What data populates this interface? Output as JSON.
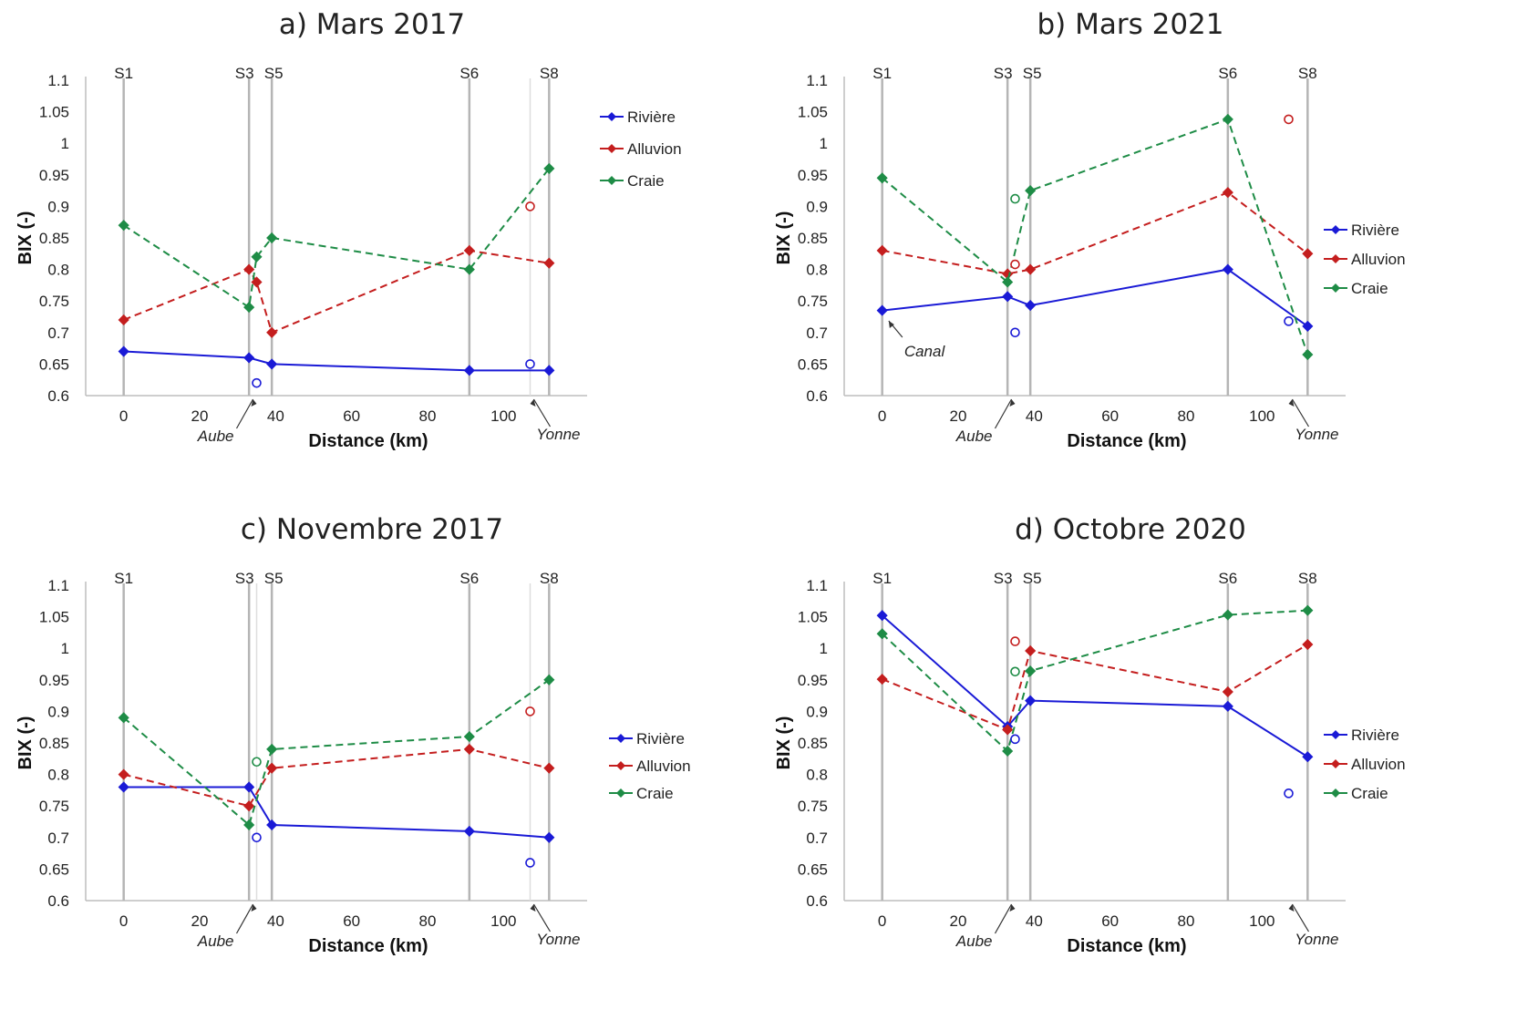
{
  "colors": {
    "riviere": "#1a1ad6",
    "alluvion": "#c41e1e",
    "craie": "#1e8c46",
    "station_line": "#b5b5b5",
    "axis": "#bdbdbd"
  },
  "chart_data": [
    {
      "type": "line",
      "title": "a) Mars 2017",
      "xlabel": "Distance (km)",
      "ylabel": "BIX (-)",
      "xlim": [
        -10,
        122
      ],
      "ylim": [
        0.6,
        1.1
      ],
      "xticks": [
        "0",
        "20",
        "40",
        "60",
        "80",
        "100"
      ],
      "yticks": [
        "0.6",
        "0.65",
        "0.7",
        "0.75",
        "0.8",
        "0.85",
        "0.9",
        "0.95",
        "1",
        "1.05",
        "1.1"
      ],
      "stations": [
        {
          "label": "S1",
          "x": 0
        },
        {
          "label": "S3",
          "x": 33
        },
        {
          "label": "S5",
          "x": 39
        },
        {
          "label": "S6",
          "x": 91
        },
        {
          "label": "S8",
          "x": 112
        }
      ],
      "tributaries": [
        {
          "x": 107
        }
      ],
      "annotations": [
        {
          "text": "Aube",
          "x": 35,
          "y": 0.6,
          "dir": "left"
        },
        {
          "text": "Yonne",
          "x": 107,
          "y": 0.6,
          "dir": "right"
        }
      ],
      "legend": "right-upper",
      "series": [
        {
          "name": "Rivière",
          "style": "solid",
          "x": [
            0,
            33,
            39,
            91,
            112
          ],
          "y": [
            0.67,
            0.66,
            0.65,
            0.64,
            0.64
          ]
        },
        {
          "name": "Alluvion",
          "style": "dashed",
          "x": [
            0,
            33,
            35,
            39,
            91,
            112
          ],
          "y": [
            0.72,
            0.8,
            0.78,
            0.7,
            0.83,
            0.81
          ]
        },
        {
          "name": "Craie",
          "style": "dashed",
          "x": [
            0,
            33,
            35,
            39,
            91,
            112
          ],
          "y": [
            0.87,
            0.74,
            0.82,
            0.85,
            0.8,
            0.96
          ]
        }
      ],
      "tributary_points": [
        {
          "series": "riviere",
          "x": 35,
          "y": 0.62
        },
        {
          "series": "riviere",
          "x": 107,
          "y": 0.65
        },
        {
          "series": "alluvion",
          "x": 107,
          "y": 0.9
        }
      ]
    },
    {
      "type": "line",
      "title": "b) Mars 2021",
      "xlabel": "Distance (km)",
      "ylabel": "BIX (-)",
      "xlim": [
        -10,
        122
      ],
      "ylim": [
        0.6,
        1.1
      ],
      "xticks": [
        "0",
        "20",
        "40",
        "60",
        "80",
        "100"
      ],
      "yticks": [
        "0.6",
        "0.65",
        "0.7",
        "0.75",
        "0.8",
        "0.85",
        "0.9",
        "0.95",
        "1",
        "1.05",
        "1.1"
      ],
      "stations": [
        {
          "label": "S1",
          "x": 0
        },
        {
          "label": "S3",
          "x": 33
        },
        {
          "label": "S5",
          "x": 39
        },
        {
          "label": "S6",
          "x": 91
        },
        {
          "label": "S8",
          "x": 112
        }
      ],
      "tributaries": [],
      "annotations": [
        {
          "text": "Canal",
          "x": 1,
          "y": 0.73,
          "dir": "canal"
        },
        {
          "text": "Aube",
          "x": 35,
          "y": 0.6,
          "dir": "left"
        },
        {
          "text": "Yonne",
          "x": 107,
          "y": 0.6,
          "dir": "right"
        }
      ],
      "legend": "right-middle",
      "series": [
        {
          "name": "Rivière",
          "style": "solid",
          "x": [
            0,
            33,
            39,
            91,
            112
          ],
          "y": [
            0.735,
            0.757,
            0.743,
            0.8,
            0.71
          ]
        },
        {
          "name": "Alluvion",
          "style": "dashed",
          "x": [
            0,
            33,
            39,
            91,
            112
          ],
          "y": [
            0.83,
            0.793,
            0.8,
            0.922,
            0.825
          ]
        },
        {
          "name": "Craie",
          "style": "dashed",
          "x": [
            0,
            33,
            39,
            91,
            112
          ],
          "y": [
            0.945,
            0.78,
            0.925,
            1.038,
            0.665
          ]
        }
      ],
      "tributary_points": [
        {
          "series": "riviere",
          "x": 35,
          "y": 0.7
        },
        {
          "series": "alluvion",
          "x": 35,
          "y": 0.808
        },
        {
          "series": "craie",
          "x": 35,
          "y": 0.912
        },
        {
          "series": "riviere",
          "x": 107,
          "y": 0.718
        },
        {
          "series": "alluvion",
          "x": 107,
          "y": 1.038
        }
      ]
    },
    {
      "type": "line",
      "title": "c) Novembre 2017",
      "xlabel": "Distance (km)",
      "ylabel": "BIX (-)",
      "xlim": [
        -10,
        122
      ],
      "ylim": [
        0.6,
        1.1
      ],
      "xticks": [
        "0",
        "20",
        "40",
        "60",
        "80",
        "100"
      ],
      "yticks": [
        "0.6",
        "0.65",
        "0.7",
        "0.75",
        "0.8",
        "0.85",
        "0.9",
        "0.95",
        "1",
        "1.05",
        "1.1"
      ],
      "stations": [
        {
          "label": "S1",
          "x": 0
        },
        {
          "label": "S3",
          "x": 33
        },
        {
          "label": "S5",
          "x": 39
        },
        {
          "label": "S6",
          "x": 91
        },
        {
          "label": "S8",
          "x": 112
        }
      ],
      "tributaries": [
        {
          "x": 35
        },
        {
          "x": 107
        }
      ],
      "annotations": [
        {
          "text": "Aube",
          "x": 35,
          "y": 0.6,
          "dir": "left"
        },
        {
          "text": "Yonne",
          "x": 107,
          "y": 0.6,
          "dir": "right"
        }
      ],
      "legend": "right-middle",
      "series": [
        {
          "name": "Rivière",
          "style": "solid",
          "x": [
            0,
            33,
            39,
            91,
            112
          ],
          "y": [
            0.78,
            0.78,
            0.72,
            0.71,
            0.7
          ]
        },
        {
          "name": "Alluvion",
          "style": "dashed",
          "x": [
            0,
            33,
            39,
            91,
            112
          ],
          "y": [
            0.8,
            0.75,
            0.81,
            0.84,
            0.81
          ]
        },
        {
          "name": "Craie",
          "style": "dashed",
          "x": [
            0,
            33,
            39,
            91,
            112
          ],
          "y": [
            0.89,
            0.72,
            0.84,
            0.86,
            0.95
          ]
        }
      ],
      "tributary_points": [
        {
          "series": "riviere",
          "x": 35,
          "y": 0.7
        },
        {
          "series": "craie",
          "x": 35,
          "y": 0.82
        },
        {
          "series": "riviere",
          "x": 107,
          "y": 0.66
        },
        {
          "series": "alluvion",
          "x": 107,
          "y": 0.9
        }
      ]
    },
    {
      "type": "line",
      "title": "d) Octobre 2020",
      "xlabel": "Distance (km)",
      "ylabel": "BIX (-)",
      "xlim": [
        -10,
        122
      ],
      "ylim": [
        0.6,
        1.1
      ],
      "xticks": [
        "0",
        "20",
        "40",
        "60",
        "80",
        "100"
      ],
      "yticks": [
        "0.6",
        "0.65",
        "0.7",
        "0.75",
        "0.8",
        "0.85",
        "0.9",
        "0.95",
        "1",
        "1.05",
        "1.1"
      ],
      "stations": [
        {
          "label": "S1",
          "x": 0
        },
        {
          "label": "S3",
          "x": 33
        },
        {
          "label": "S5",
          "x": 39
        },
        {
          "label": "S6",
          "x": 91
        },
        {
          "label": "S8",
          "x": 112
        }
      ],
      "tributaries": [],
      "annotations": [
        {
          "text": "Aube",
          "x": 35,
          "y": 0.6,
          "dir": "left"
        },
        {
          "text": "Yonne",
          "x": 107,
          "y": 0.6,
          "dir": "right"
        }
      ],
      "legend": "right-middle",
      "series": [
        {
          "name": "Rivière",
          "style": "solid",
          "x": [
            0,
            33,
            39,
            91,
            112
          ],
          "y": [
            1.052,
            0.876,
            0.917,
            0.908,
            0.828
          ]
        },
        {
          "name": "Alluvion",
          "style": "dashed",
          "x": [
            0,
            33,
            39,
            91,
            112
          ],
          "y": [
            0.951,
            0.871,
            0.996,
            0.931,
            1.006
          ]
        },
        {
          "name": "Craie",
          "style": "dashed",
          "x": [
            0,
            33,
            39,
            91,
            112
          ],
          "y": [
            1.023,
            0.837,
            0.964,
            1.053,
            1.06
          ]
        }
      ],
      "tributary_points": [
        {
          "series": "riviere",
          "x": 35,
          "y": 0.856
        },
        {
          "series": "alluvion",
          "x": 35,
          "y": 1.011
        },
        {
          "series": "craie",
          "x": 35,
          "y": 0.963
        },
        {
          "series": "riviere",
          "x": 107,
          "y": 0.77
        }
      ]
    }
  ]
}
